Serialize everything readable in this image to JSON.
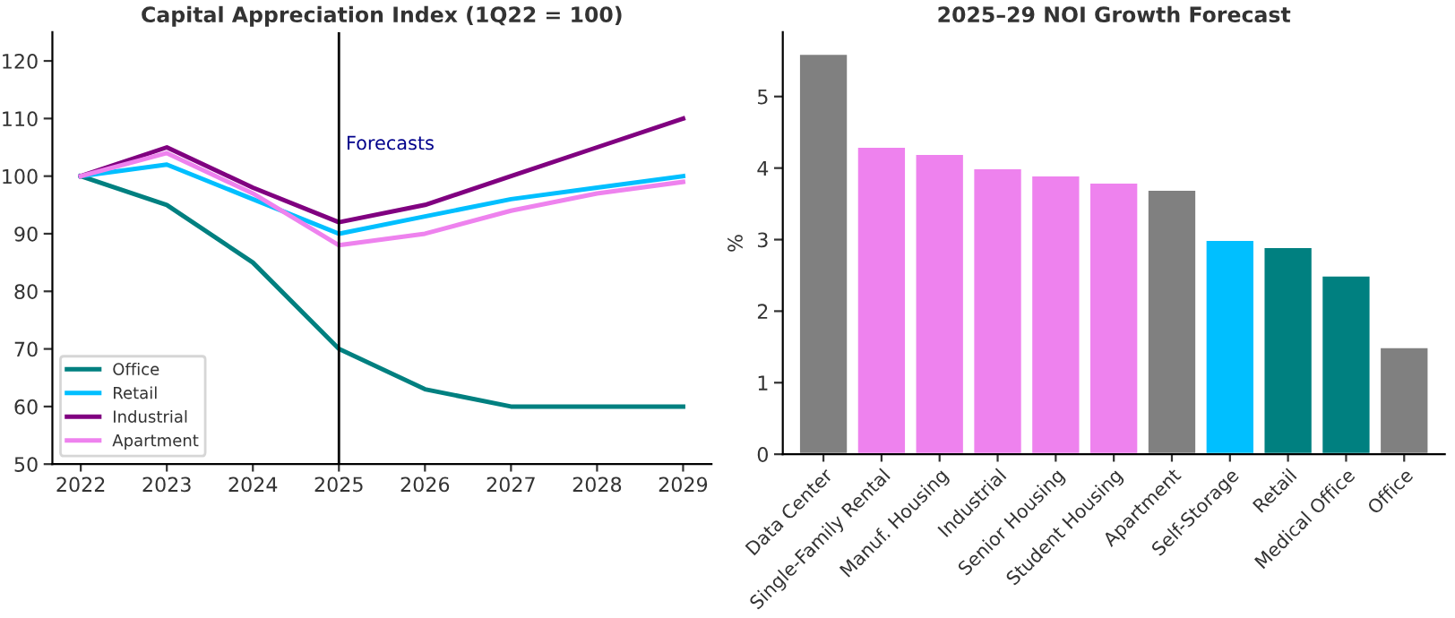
{
  "chart_data": [
    {
      "type": "line",
      "title": "Capital Appreciation Index (1Q22 = 100)",
      "x": [
        2022,
        2023,
        2024,
        2025,
        2026,
        2027,
        2028,
        2029
      ],
      "series": [
        {
          "name": "Office",
          "color": "#008080",
          "values": [
            100,
            95,
            85,
            70,
            63,
            60,
            60,
            60
          ]
        },
        {
          "name": "Retail",
          "color": "#00bfff",
          "values": [
            100,
            102,
            96,
            90,
            93,
            96,
            98,
            100
          ]
        },
        {
          "name": "Industrial",
          "color": "#800080",
          "values": [
            100,
            105,
            98,
            92,
            95,
            100,
            105,
            110
          ]
        },
        {
          "name": "Apartment",
          "color": "#ee82ee",
          "values": [
            100,
            104,
            97,
            88,
            90,
            94,
            97,
            99
          ]
        }
      ],
      "xlim": [
        2021.67,
        2029.33
      ],
      "xticks": [
        2022,
        2023,
        2024,
        2025,
        2026,
        2027,
        2028,
        2029
      ],
      "ylim": [
        50,
        125
      ],
      "yticks": [
        50,
        60,
        70,
        80,
        90,
        100,
        110,
        120
      ],
      "ref_lines": [
        {
          "axis": "x",
          "value": 2025,
          "label": "Forecasts",
          "color": "#000000"
        }
      ],
      "legend": "bottom left",
      "grid": false
    },
    {
      "type": "bar",
      "title": "2025–29 NOI Growth Forecast",
      "ylabel": "%",
      "categories": [
        "Data Center",
        "Single-Family Rental",
        "Manuf. Housing",
        "Industrial",
        "Senior Housing",
        "Student Housing",
        "Apartment",
        "Self-Storage",
        "Retail",
        "Medical Office",
        "Office"
      ],
      "values": [
        5.6,
        4.3,
        4.2,
        4.0,
        3.9,
        3.8,
        3.7,
        3.0,
        2.9,
        2.5,
        1.5
      ],
      "colors": [
        "#808080",
        "#ee82ee",
        "#ee82ee",
        "#ee82ee",
        "#ee82ee",
        "#ee82ee",
        "#808080",
        "#00bfff",
        "#008080",
        "#008080",
        "#808080"
      ],
      "ylim": [
        0,
        5.9
      ],
      "yticks": [
        0,
        1,
        2,
        3,
        4,
        5
      ],
      "grid": false
    }
  ]
}
